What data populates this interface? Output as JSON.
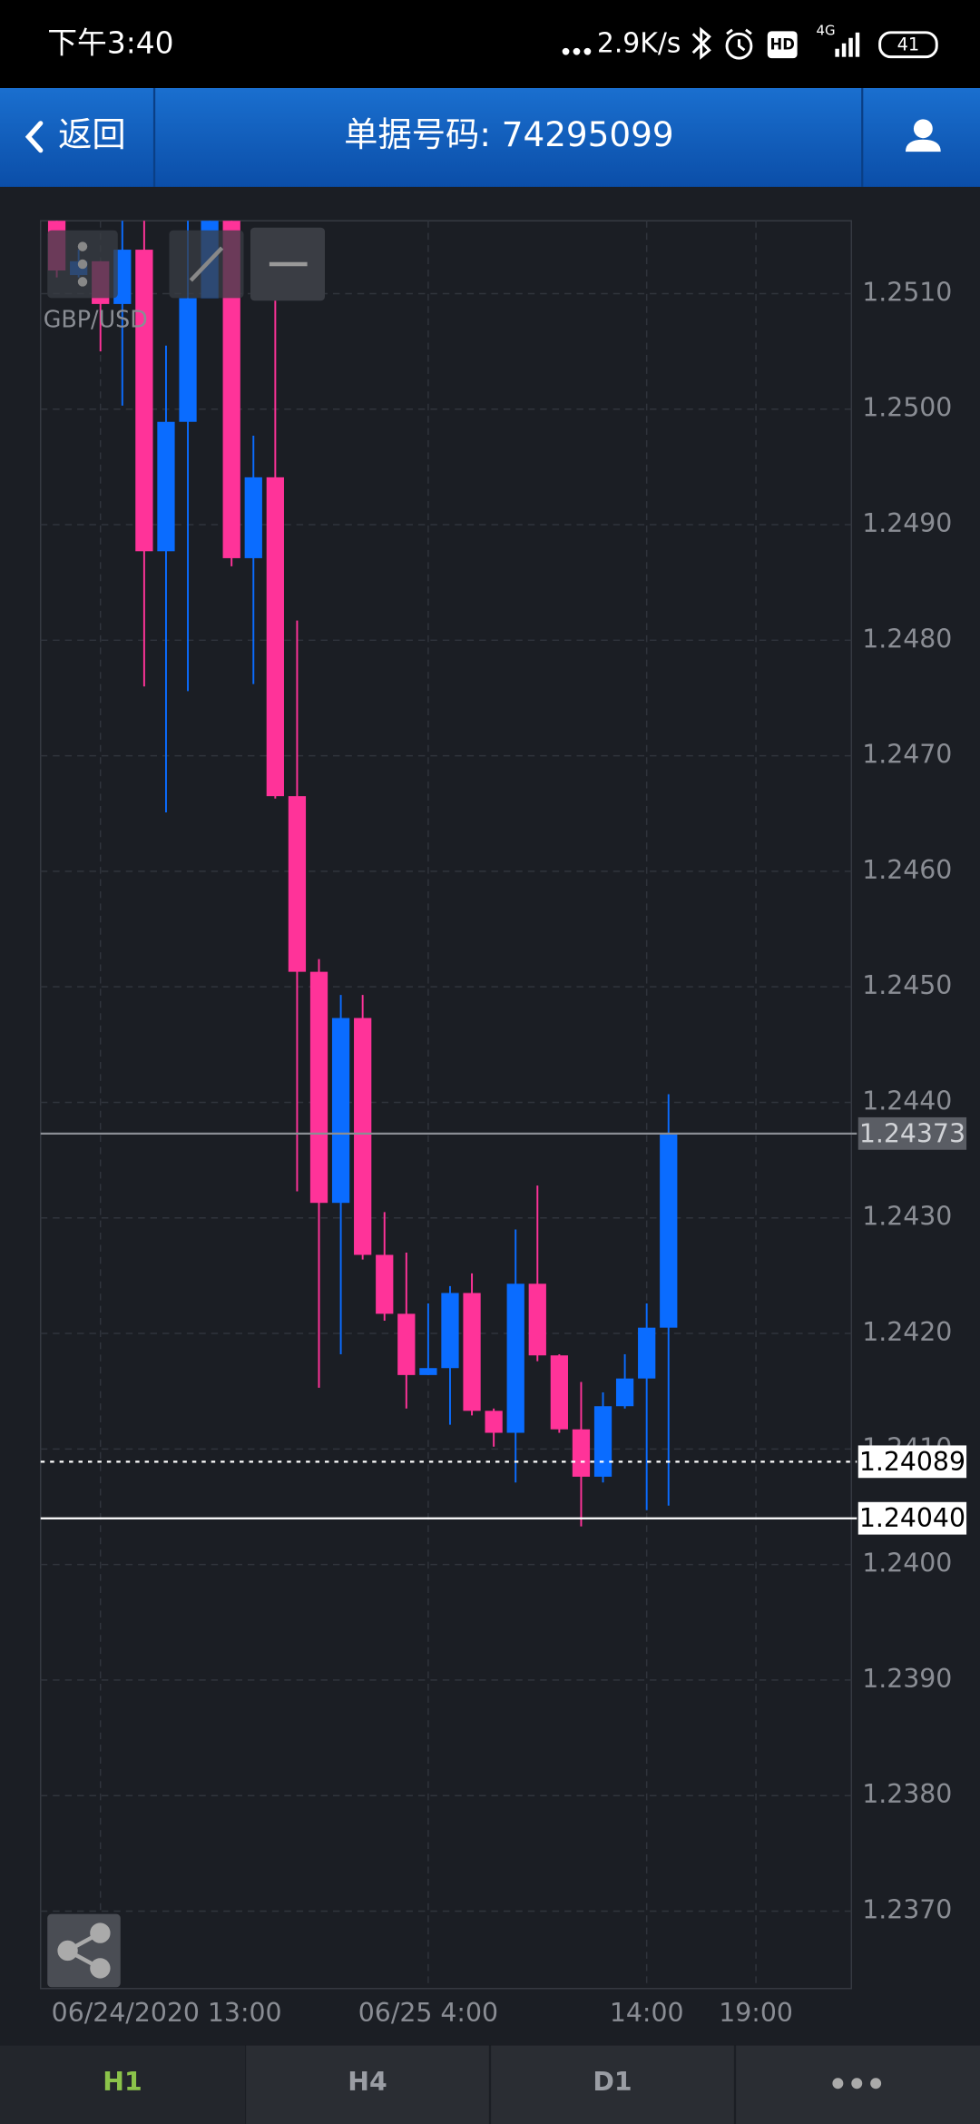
{
  "status_bar": {
    "time": "下午3:40",
    "network_speed": "2.9K/s",
    "hd": "HD",
    "network": "4G",
    "battery": "41"
  },
  "header": {
    "back": "返回",
    "title": "单据号码: 74295099"
  },
  "chart_data": {
    "type": "candlestick",
    "symbol": "GBP/USD",
    "up_color": "#0a6cff",
    "down_color": "#ff3399",
    "grid": true,
    "ylim": [
      1.23633,
      1.25163
    ],
    "yticks": [
      {
        "value": 1.237,
        "label": "1.2370"
      },
      {
        "value": 1.238,
        "label": "1.2380"
      },
      {
        "value": 1.239,
        "label": "1.2390"
      },
      {
        "value": 1.24,
        "label": "1.2400"
      },
      {
        "value": 1.241,
        "label": "1.2410"
      },
      {
        "value": 1.242,
        "label": "1.2420"
      },
      {
        "value": 1.243,
        "label": "1.2430"
      },
      {
        "value": 1.244,
        "label": "1.2440"
      },
      {
        "value": 1.245,
        "label": "1.2450"
      },
      {
        "value": 1.246,
        "label": "1.2460"
      },
      {
        "value": 1.247,
        "label": "1.2470"
      },
      {
        "value": 1.248,
        "label": "1.2480"
      },
      {
        "value": 1.249,
        "label": "1.2490"
      },
      {
        "value": 1.25,
        "label": "1.2500"
      },
      {
        "value": 1.251,
        "label": "1.2510"
      }
    ],
    "xlim": [
      -0.74,
      36.37
    ],
    "xticks": [
      {
        "value": 2,
        "label": "06/24/2020 13:00"
      },
      {
        "value": 17,
        "label": "06/25 4:00"
      },
      {
        "value": 27,
        "label": "14:00"
      },
      {
        "value": 32,
        "label": "19:00"
      }
    ],
    "open": [
      1.25163,
      1.25116,
      1.25128,
      1.25091,
      1.25138,
      1.24877,
      1.24989,
      1.25096,
      1.25163,
      1.24871,
      1.24941,
      1.24665,
      1.24513,
      1.24313,
      1.24473,
      1.24268,
      1.24217,
      1.24164,
      1.2417,
      1.24235,
      1.24133,
      1.24114,
      1.24243,
      1.24181,
      1.24117,
      1.24076,
      1.24137,
      1.24161,
      1.24205
    ],
    "high": [
      1.25163,
      1.25138,
      1.25128,
      1.25163,
      1.25163,
      1.25055,
      1.25163,
      1.25163,
      1.25163,
      1.24977,
      1.25094,
      1.24817,
      1.24524,
      1.24493,
      1.24493,
      1.24305,
      1.2427,
      1.24226,
      1.24241,
      1.24252,
      1.24135,
      1.2429,
      1.24328,
      1.24182,
      1.24158,
      1.24149,
      1.24182,
      1.24226,
      1.24407
    ],
    "low": [
      1.25114,
      1.25114,
      1.2505,
      1.25003,
      1.2476,
      1.24651,
      1.24756,
      1.25096,
      1.24864,
      1.24762,
      1.24663,
      1.24323,
      1.24153,
      1.24182,
      1.24264,
      1.24211,
      1.24135,
      1.24164,
      1.24121,
      1.24129,
      1.24102,
      1.24071,
      1.24176,
      1.24114,
      1.24033,
      1.24071,
      1.24135,
      1.24047,
      1.24051
    ],
    "close": [
      1.2512,
      1.25128,
      1.25091,
      1.25138,
      1.24877,
      1.24989,
      1.25096,
      1.25163,
      1.24871,
      1.24941,
      1.24665,
      1.24513,
      1.24313,
      1.24473,
      1.24268,
      1.24217,
      1.24164,
      1.2417,
      1.24235,
      1.24133,
      1.24114,
      1.24243,
      1.24181,
      1.24117,
      1.24076,
      1.24137,
      1.24161,
      1.24205,
      1.24373
    ],
    "price_lines": [
      1.24373,
      1.24089,
      {
        "value": 1.2404,
        "label": "1.24040"
      }
    ],
    "price_line_styles": [
      "current",
      "dotted",
      "solid"
    ]
  },
  "tabs": [
    "H1",
    "H4",
    "D1"
  ],
  "active_tab": 0
}
